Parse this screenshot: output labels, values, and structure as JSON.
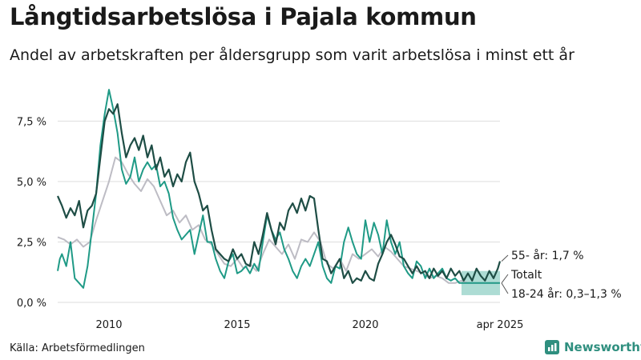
{
  "title": "Långtidsarbetslösa i Pajala kommun",
  "subtitle": "Andel av arbetskraften per åldersgrupp som varit arbetslösa i minst ett år",
  "source": "Källa: Arbetsförmedlingen",
  "logo_text": "Newsworthy",
  "colors": {
    "age55": "#1e4d45",
    "age18_24": "#1f9a86",
    "total": "#bdbcc4",
    "band": "#9fd6cc",
    "grid": "#dddddd",
    "brand": "#2f8f7f"
  },
  "chart_data": {
    "type": "line",
    "xlim": [
      "2008-01",
      "2025-04"
    ],
    "ylim": [
      0,
      9.2
    ],
    "y_ticks": [
      {
        "value": 0,
        "label": "0,0 %"
      },
      {
        "value": 2.5,
        "label": "2,5 %"
      },
      {
        "value": 5.0,
        "label": "5,0 %"
      },
      {
        "value": 7.5,
        "label": "7,5 %"
      }
    ],
    "x_ticks": [
      {
        "date": "2010-01",
        "label": "2010"
      },
      {
        "date": "2015-01",
        "label": "2015"
      },
      {
        "date": "2020-01",
        "label": "2020"
      },
      {
        "date": "2025-04",
        "label": "apr 2025"
      }
    ],
    "series": [
      {
        "key": "total",
        "end_label": "Totalt",
        "points": [
          [
            "2008-01",
            2.7
          ],
          [
            "2008-04",
            2.6
          ],
          [
            "2008-07",
            2.4
          ],
          [
            "2008-10",
            2.6
          ],
          [
            "2009-01",
            2.3
          ],
          [
            "2009-04",
            2.5
          ],
          [
            "2009-07",
            3.4
          ],
          [
            "2009-10",
            4.2
          ],
          [
            "2010-01",
            5.0
          ],
          [
            "2010-04",
            6.0
          ],
          [
            "2010-07",
            5.8
          ],
          [
            "2010-10",
            5.3
          ],
          [
            "2011-01",
            4.9
          ],
          [
            "2011-04",
            4.6
          ],
          [
            "2011-07",
            5.1
          ],
          [
            "2011-10",
            4.8
          ],
          [
            "2012-01",
            4.2
          ],
          [
            "2012-04",
            3.6
          ],
          [
            "2012-07",
            3.8
          ],
          [
            "2012-10",
            3.3
          ],
          [
            "2013-01",
            3.6
          ],
          [
            "2013-04",
            3.0
          ],
          [
            "2013-07",
            3.2
          ],
          [
            "2013-10",
            2.6
          ],
          [
            "2014-01",
            2.4
          ],
          [
            "2014-04",
            2.0
          ],
          [
            "2014-07",
            1.6
          ],
          [
            "2014-10",
            1.5
          ],
          [
            "2015-01",
            1.8
          ],
          [
            "2015-04",
            1.4
          ],
          [
            "2015-07",
            1.6
          ],
          [
            "2015-10",
            1.3
          ],
          [
            "2016-01",
            2.0
          ],
          [
            "2016-04",
            2.6
          ],
          [
            "2016-07",
            2.3
          ],
          [
            "2016-10",
            2.0
          ],
          [
            "2017-01",
            2.4
          ],
          [
            "2017-04",
            1.8
          ],
          [
            "2017-07",
            2.6
          ],
          [
            "2017-10",
            2.5
          ],
          [
            "2018-01",
            2.9
          ],
          [
            "2018-04",
            2.5
          ],
          [
            "2018-07",
            1.6
          ],
          [
            "2018-10",
            1.4
          ],
          [
            "2019-01",
            1.8
          ],
          [
            "2019-04",
            1.3
          ],
          [
            "2019-07",
            2.0
          ],
          [
            "2019-10",
            1.8
          ],
          [
            "2020-01",
            2.0
          ],
          [
            "2020-04",
            2.2
          ],
          [
            "2020-07",
            1.9
          ],
          [
            "2020-10",
            2.3
          ],
          [
            "2021-01",
            2.1
          ],
          [
            "2021-04",
            1.8
          ],
          [
            "2021-07",
            1.5
          ],
          [
            "2021-10",
            1.4
          ],
          [
            "2022-01",
            1.3
          ],
          [
            "2022-04",
            1.2
          ],
          [
            "2022-07",
            1.0
          ],
          [
            "2022-10",
            1.1
          ],
          [
            "2023-01",
            1.0
          ],
          [
            "2023-04",
            0.8
          ],
          [
            "2023-07",
            0.8
          ],
          [
            "2023-10",
            0.9
          ],
          [
            "2024-01",
            0.8
          ],
          [
            "2024-04",
            0.8
          ],
          [
            "2024-07",
            0.8
          ],
          [
            "2024-10",
            0.8
          ],
          [
            "2025-01",
            0.8
          ],
          [
            "2025-04",
            0.8
          ]
        ]
      },
      {
        "key": "age18_24",
        "end_label": "18-24 år: 0,3–1,3 %",
        "band": {
          "start": "2023-10",
          "end": "2025-04",
          "low": 0.3,
          "high": 1.3
        },
        "points": [
          [
            "2008-01",
            1.3
          ],
          [
            "2008-02",
            1.8
          ],
          [
            "2008-03",
            2.0
          ],
          [
            "2008-05",
            1.5
          ],
          [
            "2008-07",
            2.5
          ],
          [
            "2008-09",
            1.0
          ],
          [
            "2008-11",
            0.8
          ],
          [
            "2009-01",
            0.6
          ],
          [
            "2009-03",
            1.5
          ],
          [
            "2009-05",
            3.0
          ],
          [
            "2009-07",
            4.5
          ],
          [
            "2009-09",
            6.5
          ],
          [
            "2009-11",
            7.8
          ],
          [
            "2010-01",
            8.8
          ],
          [
            "2010-03",
            8.0
          ],
          [
            "2010-05",
            7.0
          ],
          [
            "2010-07",
            5.5
          ],
          [
            "2010-09",
            4.9
          ],
          [
            "2010-11",
            5.2
          ],
          [
            "2011-01",
            6.0
          ],
          [
            "2011-03",
            5.0
          ],
          [
            "2011-05",
            5.5
          ],
          [
            "2011-07",
            5.8
          ],
          [
            "2011-09",
            5.5
          ],
          [
            "2011-11",
            5.7
          ],
          [
            "2012-01",
            4.8
          ],
          [
            "2012-03",
            5.0
          ],
          [
            "2012-05",
            4.5
          ],
          [
            "2012-07",
            3.5
          ],
          [
            "2012-09",
            3.0
          ],
          [
            "2012-11",
            2.6
          ],
          [
            "2013-01",
            2.8
          ],
          [
            "2013-03",
            3.0
          ],
          [
            "2013-05",
            2.0
          ],
          [
            "2013-07",
            2.8
          ],
          [
            "2013-09",
            3.6
          ],
          [
            "2013-11",
            2.5
          ],
          [
            "2014-01",
            2.5
          ],
          [
            "2014-03",
            1.8
          ],
          [
            "2014-05",
            1.3
          ],
          [
            "2014-07",
            1.0
          ],
          [
            "2014-09",
            1.7
          ],
          [
            "2014-11",
            2.0
          ],
          [
            "2015-01",
            1.2
          ],
          [
            "2015-03",
            1.3
          ],
          [
            "2015-05",
            1.5
          ],
          [
            "2015-07",
            1.2
          ],
          [
            "2015-09",
            1.6
          ],
          [
            "2015-11",
            1.3
          ],
          [
            "2016-01",
            2.5
          ],
          [
            "2016-03",
            3.6
          ],
          [
            "2016-05",
            3.0
          ],
          [
            "2016-07",
            2.6
          ],
          [
            "2016-09",
            2.9
          ],
          [
            "2016-11",
            2.2
          ],
          [
            "2017-01",
            1.8
          ],
          [
            "2017-03",
            1.3
          ],
          [
            "2017-05",
            1.0
          ],
          [
            "2017-07",
            1.5
          ],
          [
            "2017-09",
            1.8
          ],
          [
            "2017-11",
            1.5
          ],
          [
            "2018-01",
            2.0
          ],
          [
            "2018-03",
            2.5
          ],
          [
            "2018-05",
            1.5
          ],
          [
            "2018-07",
            1.0
          ],
          [
            "2018-09",
            0.8
          ],
          [
            "2018-11",
            1.5
          ],
          [
            "2019-01",
            1.4
          ],
          [
            "2019-03",
            2.5
          ],
          [
            "2019-05",
            3.1
          ],
          [
            "2019-07",
            2.5
          ],
          [
            "2019-09",
            2.0
          ],
          [
            "2019-11",
            1.8
          ],
          [
            "2020-01",
            3.4
          ],
          [
            "2020-03",
            2.5
          ],
          [
            "2020-05",
            3.3
          ],
          [
            "2020-07",
            2.8
          ],
          [
            "2020-09",
            2.0
          ],
          [
            "2020-11",
            3.4
          ],
          [
            "2021-01",
            2.5
          ],
          [
            "2021-03",
            2.0
          ],
          [
            "2021-05",
            2.5
          ],
          [
            "2021-07",
            1.5
          ],
          [
            "2021-09",
            1.2
          ],
          [
            "2021-11",
            1.0
          ],
          [
            "2022-01",
            1.7
          ],
          [
            "2022-03",
            1.5
          ],
          [
            "2022-05",
            1.0
          ],
          [
            "2022-07",
            1.4
          ],
          [
            "2022-09",
            1.0
          ],
          [
            "2022-11",
            1.2
          ],
          [
            "2023-01",
            1.4
          ],
          [
            "2023-03",
            1.0
          ],
          [
            "2023-05",
            0.9
          ],
          [
            "2023-07",
            1.0
          ],
          [
            "2023-09",
            0.8
          ],
          [
            "2023-10",
            0.8
          ],
          [
            "2024-01",
            0.8
          ],
          [
            "2024-04",
            0.8
          ],
          [
            "2024-07",
            0.8
          ],
          [
            "2024-10",
            0.8
          ],
          [
            "2025-01",
            0.8
          ],
          [
            "2025-04",
            0.8
          ]
        ]
      },
      {
        "key": "age55",
        "end_label": "55- år: 1,7 %",
        "points": [
          [
            "2008-01",
            4.4
          ],
          [
            "2008-03",
            4.0
          ],
          [
            "2008-05",
            3.5
          ],
          [
            "2008-07",
            3.9
          ],
          [
            "2008-09",
            3.6
          ],
          [
            "2008-11",
            4.2
          ],
          [
            "2009-01",
            3.1
          ],
          [
            "2009-03",
            3.8
          ],
          [
            "2009-05",
            4.0
          ],
          [
            "2009-07",
            4.5
          ],
          [
            "2009-09",
            6.0
          ],
          [
            "2009-11",
            7.5
          ],
          [
            "2010-01",
            8.0
          ],
          [
            "2010-03",
            7.8
          ],
          [
            "2010-05",
            8.2
          ],
          [
            "2010-07",
            7.0
          ],
          [
            "2010-09",
            6.0
          ],
          [
            "2010-11",
            6.5
          ],
          [
            "2011-01",
            6.8
          ],
          [
            "2011-03",
            6.3
          ],
          [
            "2011-05",
            6.9
          ],
          [
            "2011-07",
            6.0
          ],
          [
            "2011-09",
            6.5
          ],
          [
            "2011-11",
            5.5
          ],
          [
            "2012-01",
            6.0
          ],
          [
            "2012-03",
            5.2
          ],
          [
            "2012-05",
            5.5
          ],
          [
            "2012-07",
            4.8
          ],
          [
            "2012-09",
            5.3
          ],
          [
            "2012-11",
            5.0
          ],
          [
            "2013-01",
            5.8
          ],
          [
            "2013-03",
            6.2
          ],
          [
            "2013-05",
            5.0
          ],
          [
            "2013-07",
            4.5
          ],
          [
            "2013-09",
            3.8
          ],
          [
            "2013-11",
            4.0
          ],
          [
            "2014-01",
            3.0
          ],
          [
            "2014-03",
            2.2
          ],
          [
            "2014-05",
            2.0
          ],
          [
            "2014-07",
            1.8
          ],
          [
            "2014-09",
            1.7
          ],
          [
            "2014-11",
            2.2
          ],
          [
            "2015-01",
            1.8
          ],
          [
            "2015-03",
            2.0
          ],
          [
            "2015-05",
            1.6
          ],
          [
            "2015-07",
            1.5
          ],
          [
            "2015-09",
            2.5
          ],
          [
            "2015-11",
            2.0
          ],
          [
            "2016-01",
            2.8
          ],
          [
            "2016-03",
            3.7
          ],
          [
            "2016-05",
            3.0
          ],
          [
            "2016-07",
            2.4
          ],
          [
            "2016-09",
            3.3
          ],
          [
            "2016-11",
            3.0
          ],
          [
            "2017-01",
            3.8
          ],
          [
            "2017-03",
            4.1
          ],
          [
            "2017-05",
            3.7
          ],
          [
            "2017-07",
            4.3
          ],
          [
            "2017-09",
            3.8
          ],
          [
            "2017-11",
            4.4
          ],
          [
            "2018-01",
            4.3
          ],
          [
            "2018-03",
            3.0
          ],
          [
            "2018-05",
            1.8
          ],
          [
            "2018-07",
            1.7
          ],
          [
            "2018-09",
            1.2
          ],
          [
            "2018-11",
            1.5
          ],
          [
            "2019-01",
            1.8
          ],
          [
            "2019-03",
            1.0
          ],
          [
            "2019-05",
            1.3
          ],
          [
            "2019-07",
            0.8
          ],
          [
            "2019-09",
            1.0
          ],
          [
            "2019-11",
            0.9
          ],
          [
            "2020-01",
            1.3
          ],
          [
            "2020-03",
            1.0
          ],
          [
            "2020-05",
            0.9
          ],
          [
            "2020-07",
            1.6
          ],
          [
            "2020-09",
            2.0
          ],
          [
            "2020-11",
            2.5
          ],
          [
            "2021-01",
            2.8
          ],
          [
            "2021-03",
            2.4
          ],
          [
            "2021-05",
            1.9
          ],
          [
            "2021-07",
            1.8
          ],
          [
            "2021-09",
            1.5
          ],
          [
            "2021-11",
            1.2
          ],
          [
            "2022-01",
            1.5
          ],
          [
            "2022-03",
            1.2
          ],
          [
            "2022-05",
            1.3
          ],
          [
            "2022-07",
            1.0
          ],
          [
            "2022-09",
            1.4
          ],
          [
            "2022-11",
            1.1
          ],
          [
            "2023-01",
            1.3
          ],
          [
            "2023-03",
            1.0
          ],
          [
            "2023-05",
            1.4
          ],
          [
            "2023-07",
            1.1
          ],
          [
            "2023-09",
            1.3
          ],
          [
            "2023-11",
            0.9
          ],
          [
            "2024-01",
            1.2
          ],
          [
            "2024-03",
            0.9
          ],
          [
            "2024-05",
            1.4
          ],
          [
            "2024-07",
            1.1
          ],
          [
            "2024-09",
            0.9
          ],
          [
            "2024-11",
            1.3
          ],
          [
            "2025-01",
            1.0
          ],
          [
            "2025-03",
            1.4
          ],
          [
            "2025-04",
            1.7
          ]
        ]
      }
    ]
  }
}
